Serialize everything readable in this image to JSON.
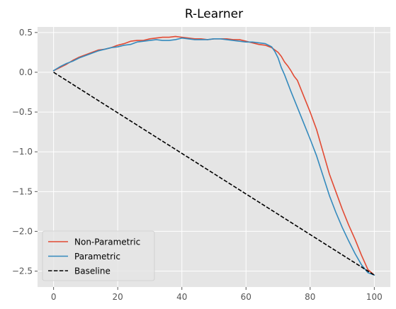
{
  "chart_data": {
    "type": "line",
    "title": "R-Learner",
    "xlabel": "",
    "ylabel": "",
    "xlim": [
      -5,
      105
    ],
    "ylim": [
      -2.7,
      0.57
    ],
    "xticks": [
      0,
      20,
      40,
      60,
      80,
      100
    ],
    "yticks": [
      -2.5,
      -2.0,
      -1.5,
      -1.0,
      -0.5,
      0.0,
      0.5
    ],
    "ytick_labels": [
      "−2.5",
      "−2.0",
      "−1.5",
      "−1.0",
      "−0.5",
      "0.0",
      "0.5"
    ],
    "grid": true,
    "legend_position": "lower-left",
    "series": [
      {
        "name": "Non-Parametric",
        "color": "#E24A33",
        "dash": "solid",
        "x": [
          0,
          2,
          4,
          6,
          8,
          10,
          12,
          14,
          16,
          18,
          20,
          22,
          24,
          26,
          28,
          30,
          32,
          34,
          36,
          38,
          40,
          42,
          44,
          46,
          48,
          50,
          52,
          54,
          56,
          58,
          60,
          62,
          64,
          66,
          68,
          70,
          71,
          72,
          73,
          74,
          75,
          76,
          78,
          80,
          82,
          84,
          86,
          88,
          90,
          92,
          94,
          96,
          98,
          100
        ],
        "y": [
          0.02,
          0.06,
          0.1,
          0.15,
          0.19,
          0.22,
          0.25,
          0.28,
          0.29,
          0.31,
          0.34,
          0.36,
          0.39,
          0.4,
          0.4,
          0.42,
          0.43,
          0.44,
          0.44,
          0.45,
          0.44,
          0.43,
          0.42,
          0.42,
          0.41,
          0.42,
          0.42,
          0.42,
          0.41,
          0.41,
          0.39,
          0.37,
          0.35,
          0.34,
          0.31,
          0.25,
          0.2,
          0.13,
          0.08,
          0.02,
          -0.05,
          -0.1,
          -0.3,
          -0.5,
          -0.72,
          -1.0,
          -1.28,
          -1.5,
          -1.72,
          -1.92,
          -2.1,
          -2.3,
          -2.48,
          -2.55
        ]
      },
      {
        "name": "Parametric",
        "color": "#348ABD",
        "dash": "solid",
        "x": [
          0,
          2,
          4,
          6,
          8,
          10,
          12,
          14,
          16,
          18,
          20,
          22,
          24,
          26,
          28,
          30,
          32,
          34,
          36,
          38,
          40,
          42,
          44,
          46,
          48,
          50,
          52,
          54,
          56,
          58,
          60,
          62,
          64,
          66,
          68,
          69,
          70,
          71,
          72,
          74,
          76,
          78,
          80,
          82,
          84,
          86,
          88,
          90,
          92,
          94,
          96,
          98,
          100
        ],
        "y": [
          0.02,
          0.07,
          0.11,
          0.14,
          0.18,
          0.21,
          0.24,
          0.27,
          0.29,
          0.31,
          0.32,
          0.34,
          0.35,
          0.38,
          0.39,
          0.4,
          0.41,
          0.4,
          0.4,
          0.41,
          0.43,
          0.42,
          0.41,
          0.41,
          0.41,
          0.42,
          0.42,
          0.41,
          0.4,
          0.39,
          0.38,
          0.38,
          0.37,
          0.36,
          0.32,
          0.26,
          0.18,
          0.06,
          -0.03,
          -0.24,
          -0.44,
          -0.64,
          -0.84,
          -1.05,
          -1.3,
          -1.55,
          -1.76,
          -1.95,
          -2.12,
          -2.28,
          -2.42,
          -2.52,
          -2.55
        ]
      },
      {
        "name": "Baseline",
        "color": "#000000",
        "dash": "dashed",
        "x": [
          0,
          100
        ],
        "y": [
          0.0,
          -2.55
        ]
      }
    ]
  }
}
